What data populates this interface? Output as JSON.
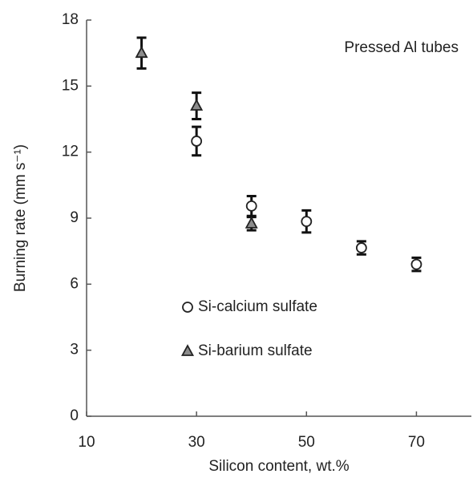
{
  "chart_data": {
    "type": "scatter",
    "x_label": "Silicon content, wt.%",
    "y_label": "Burning rate (mm s⁻¹)",
    "annotation": "Pressed Al tubes",
    "xlim": [
      10,
      80
    ],
    "xticks": [
      10,
      30,
      50,
      70
    ],
    "ylim": [
      0,
      18
    ],
    "yticks": [
      0,
      3,
      6,
      9,
      12,
      15,
      18
    ],
    "legend": "left",
    "series": [
      {
        "name": "Si-calcium sulfate",
        "marker": "circle",
        "color": "#ffffff",
        "x": [
          30,
          40,
          50,
          60,
          70
        ],
        "values": [
          12.5,
          9.55,
          8.85,
          7.65,
          6.9
        ],
        "errors": [
          0.65,
          0.45,
          0.5,
          0.3,
          0.3
        ]
      },
      {
        "name": "Si-barium sulfate",
        "marker": "triangle",
        "color": "#8c8c8c",
        "x": [
          20,
          30,
          40
        ],
        "values": [
          16.5,
          14.1,
          8.75
        ],
        "errors": [
          0.7,
          0.6,
          0.3
        ]
      }
    ]
  }
}
